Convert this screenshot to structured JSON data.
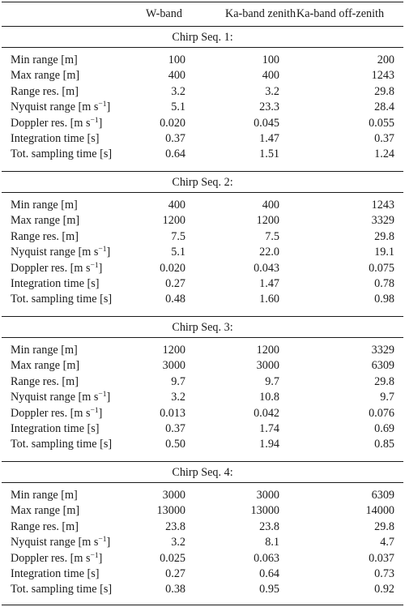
{
  "header": {
    "col1": "W-band",
    "col2": "Ka-band zenith",
    "col3": "Ka-band off-zenith"
  },
  "sections": [
    {
      "title": "Chirp Seq. 1:",
      "rows": [
        {
          "label": "Min range [m]",
          "v": [
            "100",
            "100",
            "200"
          ]
        },
        {
          "label": "Max range [m]",
          "v": [
            "400",
            "400",
            "1243"
          ]
        },
        {
          "label": "Range res. [m]",
          "v": [
            "3.2",
            "3.2",
            "29.8"
          ]
        },
        {
          "label": "Nyquist range [m s",
          "sup": "−1",
          "tail": "]",
          "v": [
            "5.1",
            "23.3",
            "28.4"
          ]
        },
        {
          "label": "Doppler res. [m s",
          "sup": "−1",
          "tail": "]",
          "v": [
            "0.020",
            "0.045",
            "0.055"
          ]
        },
        {
          "label": "Integration time [s]",
          "v": [
            "0.37",
            "1.47",
            "0.37"
          ]
        },
        {
          "label": "Tot. sampling time [s]",
          "v": [
            "0.64",
            "1.51",
            "1.24"
          ]
        }
      ]
    },
    {
      "title": "Chirp Seq. 2:",
      "rows": [
        {
          "label": "Min range [m]",
          "v": [
            "400",
            "400",
            "1243"
          ]
        },
        {
          "label": "Max range [m]",
          "v": [
            "1200",
            "1200",
            "3329"
          ]
        },
        {
          "label": "Range res. [m]",
          "v": [
            "7.5",
            "7.5",
            "29.8"
          ]
        },
        {
          "label": "Nyquist range [m s",
          "sup": "−1",
          "tail": "]",
          "v": [
            "5.1",
            "22.0",
            "19.1"
          ]
        },
        {
          "label": "Doppler res. [m s",
          "sup": "−1",
          "tail": "]",
          "v": [
            "0.020",
            "0.043",
            "0.075"
          ]
        },
        {
          "label": "Integration time [s]",
          "v": [
            "0.27",
            "1.47",
            "0.78"
          ]
        },
        {
          "label": "Tot. sampling time [s]",
          "v": [
            "0.48",
            "1.60",
            "0.98"
          ]
        }
      ]
    },
    {
      "title": "Chirp Seq. 3:",
      "rows": [
        {
          "label": "Min range [m]",
          "v": [
            "1200",
            "1200",
            "3329"
          ]
        },
        {
          "label": "Max range [m]",
          "v": [
            "3000",
            "3000",
            "6309"
          ]
        },
        {
          "label": "Range res. [m]",
          "v": [
            "9.7",
            "9.7",
            "29.8"
          ]
        },
        {
          "label": "Nyquist range [m s",
          "sup": "−1",
          "tail": "]",
          "v": [
            "3.2",
            "10.8",
            "9.7"
          ]
        },
        {
          "label": "Doppler res. [m s",
          "sup": "−1",
          "tail": "]",
          "v": [
            "0.013",
            "0.042",
            "0.076"
          ]
        },
        {
          "label": "Integration time [s]",
          "v": [
            "0.37",
            "1.74",
            "0.69"
          ]
        },
        {
          "label": "Tot. sampling time [s]",
          "v": [
            "0.50",
            "1.94",
            "0.85"
          ]
        }
      ]
    },
    {
      "title": "Chirp Seq. 4:",
      "rows": [
        {
          "label": "Min range [m]",
          "v": [
            "3000",
            "3000",
            "6309"
          ]
        },
        {
          "label": "Max range [m]",
          "v": [
            "13000",
            "13000",
            "14000"
          ]
        },
        {
          "label": "Range res. [m]",
          "v": [
            "23.8",
            "23.8",
            "29.8"
          ]
        },
        {
          "label": "Nyquist range [m s",
          "sup": "−1",
          "tail": "]",
          "v": [
            "3.2",
            "8.1",
            "4.7"
          ]
        },
        {
          "label": "Doppler res. [m s",
          "sup": "−1",
          "tail": "]",
          "v": [
            "0.025",
            "0.063",
            "0.037"
          ]
        },
        {
          "label": "Integration time [s]",
          "v": [
            "0.27",
            "0.64",
            "0.73"
          ]
        },
        {
          "label": "Tot. sampling time [s]",
          "v": [
            "0.38",
            "0.95",
            "0.92"
          ]
        }
      ]
    }
  ]
}
